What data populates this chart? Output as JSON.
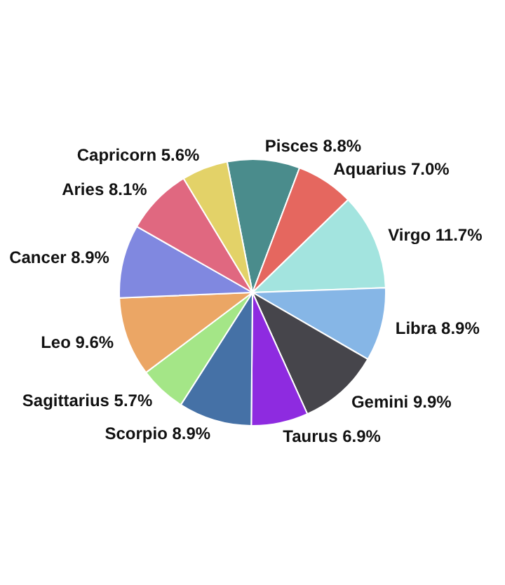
{
  "chart_data": {
    "type": "pie",
    "categories": [
      "Pisces",
      "Aquarius",
      "Virgo",
      "Libra",
      "Gemini",
      "Taurus",
      "Scorpio",
      "Sagittarius",
      "Leo",
      "Cancer",
      "Aries",
      "Capricorn"
    ],
    "values": [
      8.8,
      7.0,
      11.7,
      8.9,
      9.9,
      6.9,
      8.9,
      5.7,
      9.6,
      8.9,
      8.1,
      5.6
    ],
    "value_labels": [
      "8.8%",
      "7.0%",
      "11.7%",
      "8.9%",
      "9.9%",
      "6.9%",
      "8.9%",
      "5.7%",
      "9.6%",
      "8.9%",
      "8.1%",
      "5.6%"
    ],
    "colors": [
      "#4a8c8c",
      "#e5675f",
      "#a3e4df",
      "#86b6e6",
      "#46454b",
      "#8e2be0",
      "#4571a6",
      "#a4e687",
      "#eba665",
      "#8088e0",
      "#e06880",
      "#e3d268"
    ]
  }
}
